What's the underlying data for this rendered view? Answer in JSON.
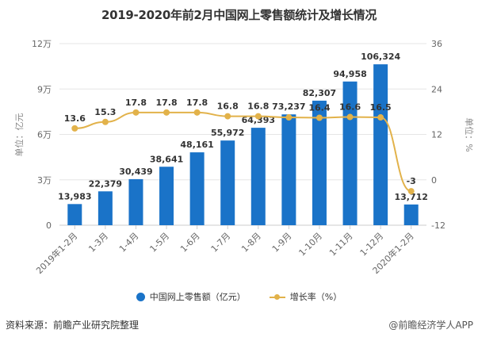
{
  "chart_data": {
    "type": "bar+line",
    "title": "2019-2020年前2月中国网上零售额统计及增长情况",
    "categories": [
      "2019年1-2月",
      "1-3月",
      "1-4月",
      "1-5月",
      "1-6月",
      "1-7月",
      "1-8月",
      "1-9月",
      "1-10月",
      "1-11月",
      "1-12月",
      "2020年1-2月"
    ],
    "series": [
      {
        "name": "中国网上零售额（亿元）",
        "type": "bar",
        "axis": "left",
        "color": "#1a73c8",
        "values": [
          13983,
          22379,
          30439,
          38641,
          48161,
          55972,
          64393,
          73237,
          82307,
          94958,
          106324,
          13712
        ],
        "labels": [
          "13,983",
          "22,379",
          "30,439",
          "38,641",
          "48,161",
          "55,972",
          "64,393",
          "73,237",
          "82,307",
          "94,958",
          "106,324",
          "13,712"
        ]
      },
      {
        "name": "增长率（%）",
        "type": "line",
        "axis": "right",
        "color": "#e2b24a",
        "values": [
          13.6,
          15.3,
          17.8,
          17.8,
          17.8,
          16.8,
          16.8,
          16.5,
          16.4,
          16.6,
          16.5,
          -3
        ],
        "labels": [
          "13.6",
          "15.3",
          "17.8",
          "17.8",
          "17.8",
          "16.8",
          "16.8",
          "",
          "16.4",
          "16.6",
          "16.5",
          "-3"
        ]
      }
    ],
    "y_left": {
      "label": "单位：亿元",
      "ylim": [
        0,
        120000
      ],
      "ticks": [
        0,
        30000,
        60000,
        90000,
        120000
      ],
      "tick_labels": [
        "0",
        "3万",
        "6万",
        "9万",
        "12万"
      ]
    },
    "y_right": {
      "label": "单位：%",
      "ylim": [
        -12,
        36
      ],
      "ticks": [
        -12,
        0,
        12,
        24,
        36
      ],
      "tick_labels": [
        "-12",
        "0",
        "12",
        "24",
        "36"
      ]
    },
    "grid": true,
    "legend": "bottom-center"
  },
  "legend": {
    "bar_label": "中国网上零售额（亿元）",
    "line_label": "增长率（%）"
  },
  "footer": {
    "source": "资料来源：前瞻产业研究院整理",
    "brand": "@前瞻经济学人APP"
  }
}
